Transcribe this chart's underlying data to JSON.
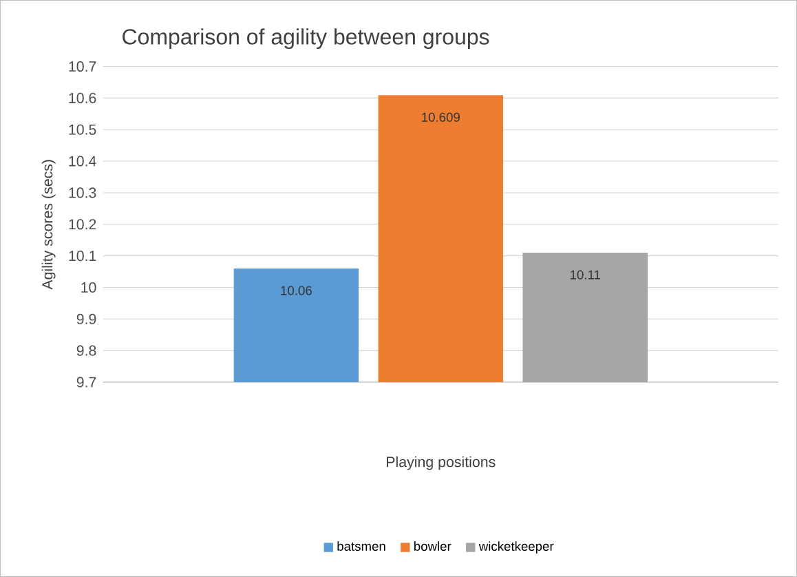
{
  "chart_data": {
    "type": "bar",
    "title": "Comparison of agility between groups",
    "xlabel": "Playing positions",
    "ylabel": "Agility scores (secs)",
    "categories": [
      null
    ],
    "series": [
      {
        "name": "batsmen",
        "color": "#5b9bd5",
        "values": [
          10.06
        ]
      },
      {
        "name": "bowler",
        "color": "#ed7d31",
        "values": [
          10.609
        ]
      },
      {
        "name": "wicketkeeper",
        "color": "#a5a5a5",
        "values": [
          10.11
        ]
      }
    ],
    "ylim": [
      9.7,
      10.7
    ],
    "yticks": [
      9.7,
      9.8,
      9.9,
      10,
      10.1,
      10.2,
      10.3,
      10.4,
      10.5,
      10.6,
      10.7
    ],
    "grid": "y",
    "legend": "bottom",
    "data_labels": true
  }
}
